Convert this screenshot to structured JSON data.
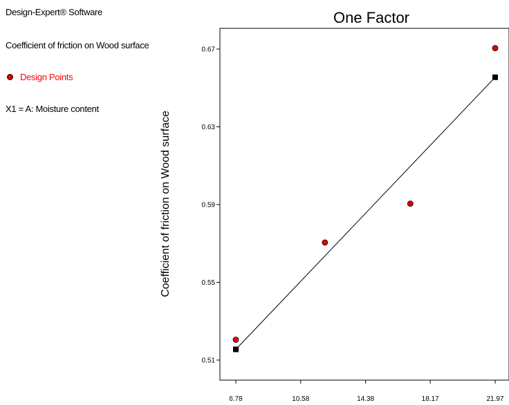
{
  "info": {
    "software": "Design-Expert® Software",
    "response": "Coefficient of friction on Wood surface",
    "legend_label": "Design Points",
    "factor": "X1 = A: Moisture content"
  },
  "colors": {
    "design_point": "#e00000",
    "legend_text": "#ff0000",
    "line": "#000000",
    "axis": "#000000"
  },
  "chart_data": {
    "type": "scatter",
    "title": "One Factor",
    "xlabel": "",
    "ylabel": "Coefficient of friction on Wood surface",
    "xlim": [
      6.78,
      21.97
    ],
    "ylim": [
      0.5,
      0.68
    ],
    "x_ticks": [
      "6.78",
      "10.58",
      "14.38",
      "18.17",
      "21.97"
    ],
    "y_ticks": [
      "0.51",
      "0.55",
      "0.59",
      "0.63",
      "0.67"
    ],
    "grid": false,
    "series": [
      {
        "name": "Design Points",
        "kind": "points",
        "color": "#e00000",
        "x": [
          6.78,
          12.0,
          17.0,
          21.97
        ],
        "y": [
          0.5205,
          0.5705,
          0.5905,
          0.6705
        ]
      },
      {
        "kind": "fit-line",
        "color": "#000000",
        "x": [
          6.78,
          21.97
        ],
        "y": [
          0.5155,
          0.6555
        ]
      }
    ]
  }
}
